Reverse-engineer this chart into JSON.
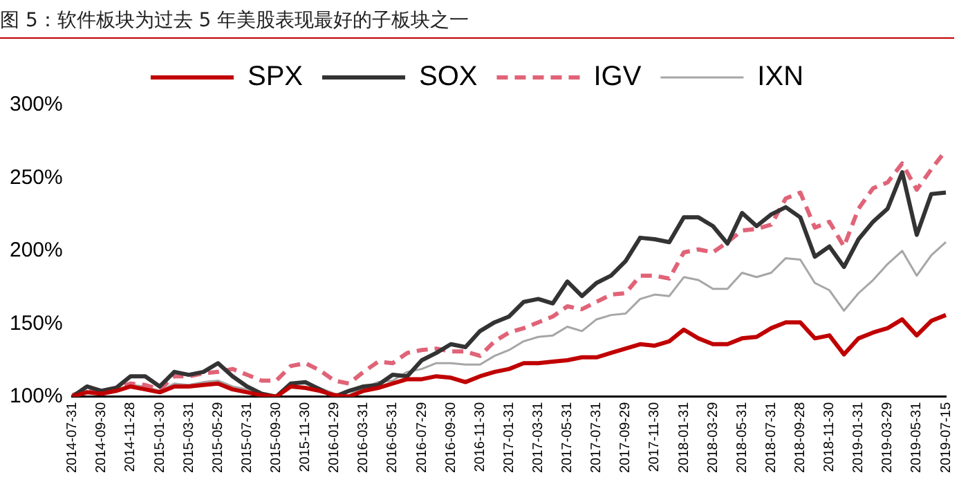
{
  "chart_data": {
    "type": "line",
    "title": "图 5：软件板块为过去 5 年美股表现最好的子板块之一",
    "categories": [
      "2014-07-31",
      null,
      "2014-09-30",
      null,
      "2014-11-28",
      null,
      "2015-01-30",
      null,
      "2015-03-31",
      null,
      "2015-05-29",
      null,
      "2015-07-31",
      null,
      "2015-09-30",
      null,
      "2015-11-30",
      null,
      "2016-01-29",
      null,
      "2016-03-31",
      null,
      "2016-05-31",
      null,
      "2016-07-29",
      null,
      "2016-09-30",
      null,
      "2016-11-30",
      null,
      "2017-01-31",
      null,
      "2017-03-31",
      null,
      "2017-05-31",
      null,
      "2017-07-31",
      null,
      "2017-09-29",
      null,
      "2017-11-30",
      null,
      "2018-01-31",
      null,
      "2018-03-29",
      null,
      "2018-05-31",
      null,
      "2018-07-31",
      null,
      "2018-09-28",
      null,
      "2018-11-30",
      null,
      "2019-01-31",
      null,
      "2019-03-29",
      null,
      "2019-05-31",
      null,
      "2019-07-15"
    ],
    "series": [
      {
        "name": "SPX",
        "color": "#c00000",
        "line_style": "solid",
        "values": [
          100,
          103,
          102,
          104,
          107,
          105,
          103,
          107,
          107,
          108,
          109,
          105,
          103,
          101,
          100,
          107,
          106,
          104,
          101,
          100,
          104,
          106,
          109,
          112,
          112,
          114,
          113,
          110,
          114,
          117,
          119,
          123,
          123,
          124,
          125,
          127,
          127,
          130,
          133,
          136,
          135,
          138,
          146,
          140,
          136,
          136,
          140,
          141,
          147,
          151,
          151,
          140,
          142,
          129,
          140,
          144,
          147,
          153,
          142,
          152,
          156
        ]
      },
      {
        "name": "SOX",
        "color": "#333333",
        "line_style": "solid",
        "values": [
          100,
          107,
          104,
          106,
          114,
          114,
          107,
          117,
          115,
          117,
          123,
          114,
          107,
          102,
          100,
          109,
          110,
          105,
          100,
          104,
          107,
          108,
          115,
          114,
          125,
          130,
          136,
          134,
          145,
          151,
          155,
          165,
          167,
          164,
          179,
          169,
          178,
          183,
          193,
          209,
          208,
          206,
          223,
          223,
          217,
          205,
          226,
          217,
          225,
          230,
          223,
          196,
          203,
          189,
          208,
          220,
          229,
          254,
          211,
          239,
          240
        ]
      },
      {
        "name": "IGV",
        "color": "#e06377",
        "line_style": "dashed",
        "values": [
          101,
          105,
          104,
          106,
          109,
          108,
          105,
          114,
          114,
          116,
          117,
          119,
          115,
          111,
          111,
          121,
          123,
          118,
          111,
          109,
          117,
          124,
          123,
          130,
          132,
          133,
          131,
          131,
          128,
          138,
          144,
          147,
          151,
          155,
          162,
          160,
          165,
          170,
          171,
          183,
          183,
          181,
          199,
          201,
          199,
          206,
          214,
          215,
          218,
          236,
          240,
          216,
          220,
          203,
          229,
          243,
          247,
          260,
          242,
          256,
          269
        ]
      },
      {
        "name": "IXN",
        "color": "#a6a6a6",
        "line_style": "solid",
        "values": [
          100,
          104,
          102,
          104,
          108,
          107,
          104,
          109,
          108,
          110,
          111,
          107,
          105,
          102,
          100,
          109,
          109,
          106,
          102,
          101,
          106,
          110,
          111,
          117,
          119,
          123,
          123,
          122,
          122,
          128,
          132,
          138,
          141,
          142,
          148,
          145,
          153,
          156,
          157,
          167,
          170,
          169,
          182,
          180,
          174,
          174,
          185,
          182,
          185,
          195,
          194,
          178,
          173,
          159,
          171,
          180,
          191,
          200,
          183,
          197,
          206
        ]
      }
    ],
    "ylim": [
      100,
      300
    ],
    "yticks": [
      {
        "value": 100,
        "label": "100%"
      },
      {
        "value": 150,
        "label": "150%"
      },
      {
        "value": 200,
        "label": "200%"
      },
      {
        "value": 250,
        "label": "250%"
      },
      {
        "value": 300,
        "label": "300%"
      }
    ],
    "grid": false,
    "legend": "top",
    "marker": "none"
  }
}
